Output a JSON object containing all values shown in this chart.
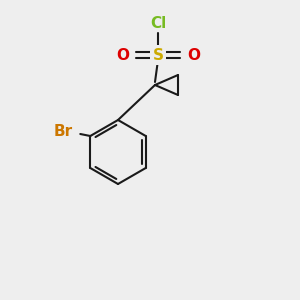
{
  "background_color": "#eeeeee",
  "bond_color": "#1a1a1a",
  "bond_width": 1.5,
  "cl_color": "#77bb22",
  "s_color": "#ccaa00",
  "o_color": "#dd0000",
  "br_color": "#cc7700",
  "cl_label": "Cl",
  "s_label": "S",
  "o_left_label": "O",
  "o_right_label": "O",
  "br_label": "Br",
  "font_size_atoms": 11,
  "figsize": [
    3.0,
    3.0
  ],
  "dpi": 100
}
